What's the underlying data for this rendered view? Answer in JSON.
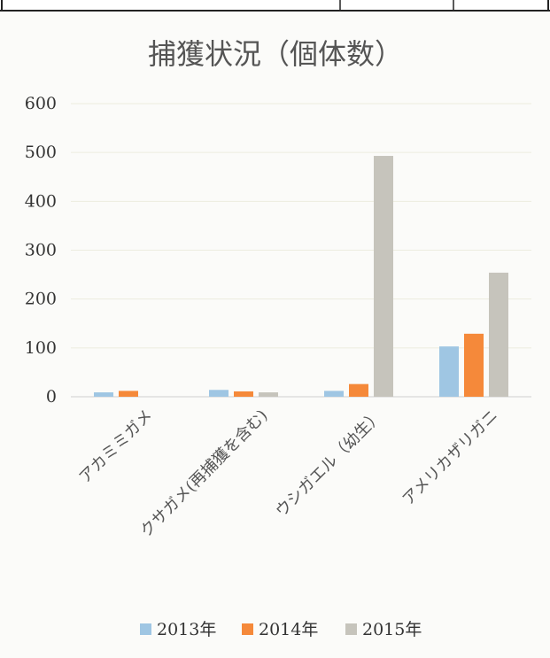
{
  "top_table": {
    "rows": 1,
    "columns": 3
  },
  "chart_data": {
    "type": "bar",
    "title": "捕獲状況（個体数）",
    "xlabel": "",
    "ylabel": "",
    "categories": [
      "アカミミガメ",
      "クサガメ(再捕獲を含む)",
      "ウシガエル（幼生）",
      "アメリカザリガニ"
    ],
    "series": [
      {
        "name": "2013年",
        "color": "#9fc6e3",
        "values": [
          9,
          14,
          12,
          103
        ]
      },
      {
        "name": "2014年",
        "color": "#f5893a",
        "values": [
          12,
          11,
          26,
          129
        ]
      },
      {
        "name": "2015年",
        "color": "#c6c4bc",
        "values": [
          null,
          9,
          493,
          254
        ]
      }
    ],
    "yticks": [
      0,
      100,
      200,
      300,
      400,
      500,
      600
    ],
    "ylim": [
      0,
      600
    ],
    "grid": true,
    "legend": "bottom"
  }
}
